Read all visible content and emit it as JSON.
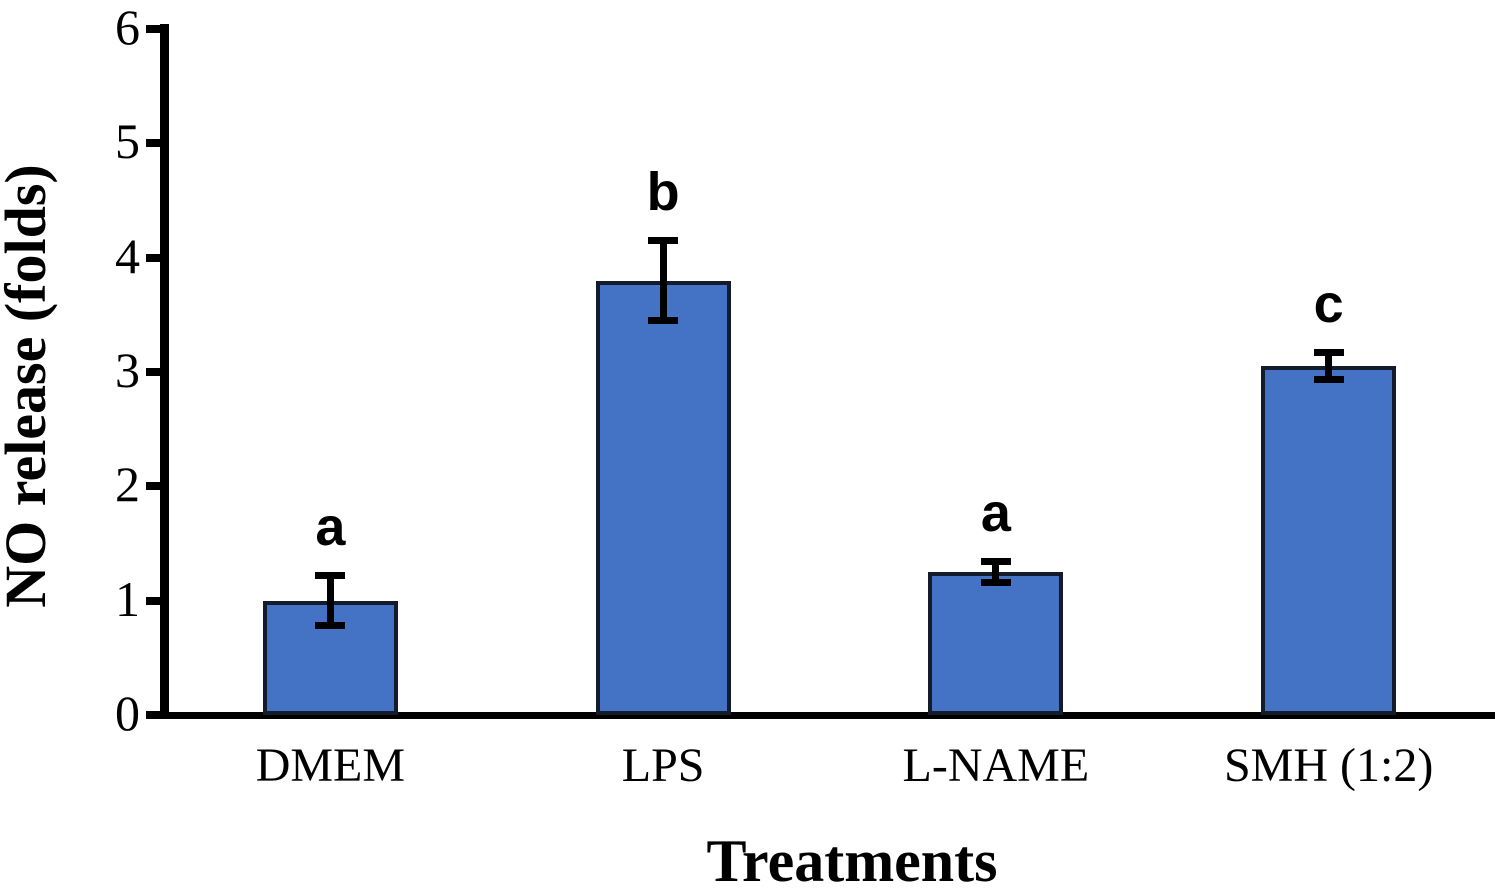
{
  "figure": {
    "background_color": "#ffffff"
  },
  "chart_data": {
    "type": "bar",
    "title": "",
    "xlabel": "Treatments",
    "ylabel": "NO release (folds)",
    "categories": [
      "DMEM",
      "LPS",
      "L-NAME",
      "SMH (1:2)"
    ],
    "values": [
      1.0,
      3.8,
      1.25,
      3.05
    ],
    "error_bars": [
      0.25,
      0.38,
      0.12,
      0.15
    ],
    "significance_letters": [
      "a",
      "b",
      "a",
      "c"
    ],
    "ylim": [
      0,
      6
    ],
    "yticks": [
      "0",
      "1",
      "2",
      "3",
      "4",
      "5",
      "6"
    ],
    "grid": false,
    "legend_position": "none",
    "bar_fill_color": "#4472C4",
    "bar_border_color": "#141c2c",
    "axis_color": "#000000",
    "error_bar_color": "#000000"
  }
}
